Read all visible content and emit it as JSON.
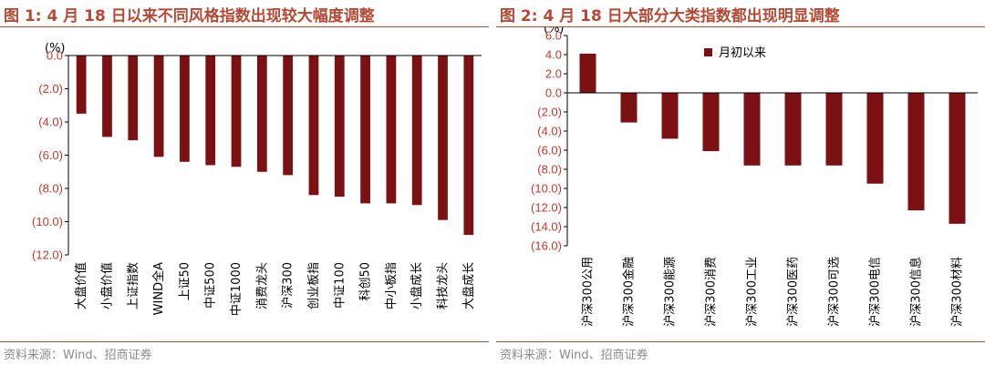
{
  "colors": {
    "bar": "#7b1113",
    "title": "#b24a35",
    "axis_text": "#c0392b",
    "source": "#8a8a8a"
  },
  "figures": [
    {
      "title": "图 1:  4 月 18 日以来不同风格指数出现较大幅度调整",
      "source": "资料来源：Wind、招商证券",
      "unit_label": "(%)"
    },
    {
      "title": "图 2:  4 月 18 日大部分大类指数都出现明显调整",
      "source": "资料来源：Wind、招商证券",
      "unit_label": "(%)"
    }
  ],
  "chart_data": [
    {
      "type": "bar",
      "title": "图 1:  4 月 18 日以来不同风格指数出现较大幅度调整",
      "ylabel": "(%)",
      "ylim": [
        -12,
        0
      ],
      "ytick_values": [
        0,
        -2,
        -4,
        -6,
        -8,
        -10,
        -12
      ],
      "ytick_labels": [
        "0.0",
        "(2.0)",
        "(4.0)",
        "(6.0)",
        "(8.0)",
        "(10.0)",
        "(12.0)"
      ],
      "categories": [
        "大盘价值",
        "小盘价值",
        "上证指数",
        "WIND全A",
        "上证50",
        "中证500",
        "中证1000",
        "消费龙头",
        "沪深300",
        "创业板指",
        "中证100",
        "科创50",
        "中小板指",
        "小盘成长",
        "科技龙头",
        "大盘成长"
      ],
      "values": [
        -3.5,
        -4.9,
        -5.1,
        -6.1,
        -6.4,
        -6.6,
        -6.7,
        -7.0,
        -7.2,
        -8.4,
        -8.5,
        -8.9,
        -8.9,
        -9.0,
        -9.9,
        -10.8
      ],
      "grid": false
    },
    {
      "type": "bar",
      "title": "图 2:  4 月 18 日大部分大类指数都出现明显调整",
      "ylabel": "(%)",
      "ylim": [
        -16,
        6
      ],
      "ytick_values": [
        6,
        4,
        2,
        0,
        -2,
        -4,
        -6,
        -8,
        -10,
        -12,
        -14,
        -16
      ],
      "ytick_labels": [
        "6.0",
        "4.0",
        "2.0",
        "0.0",
        "(2.0)",
        "(4.0)",
        "(6.0)",
        "(8.0)",
        "(10.0)",
        "(12.0)",
        "(14.0)",
        "(16.0)"
      ],
      "categories": [
        "沪深300公用",
        "沪深300金融",
        "沪深300能源",
        "沪深300消费",
        "沪深300工业",
        "沪深300医药",
        "沪深300可选",
        "沪深300电信",
        "沪深300信息",
        "沪深300材料"
      ],
      "series": [
        {
          "name": "月初以来",
          "values": [
            4.1,
            -3.1,
            -4.8,
            -6.1,
            -7.6,
            -7.6,
            -7.6,
            -9.5,
            -12.3,
            -13.7
          ]
        }
      ],
      "legend": "top-center",
      "grid": false
    }
  ]
}
